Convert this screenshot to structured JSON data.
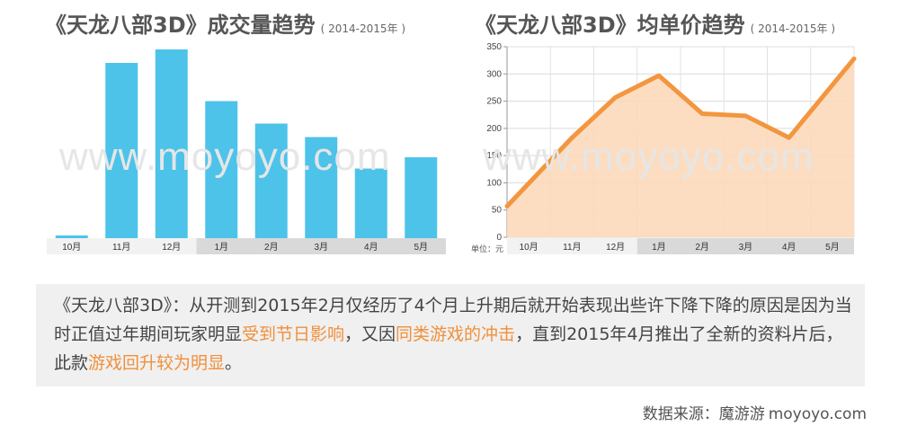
{
  "chart_titles": [
    {
      "main": "《天龙八部3D》成交量趋势",
      "sub": "( 2014-2015年 )"
    },
    {
      "main": "《天龙八部3D》均单价趋势",
      "sub": "( 2014-2015年 )"
    }
  ],
  "watermark": "www.moyoyo.com",
  "colors": {
    "bar": "#4dc3ea",
    "line": "#f39640",
    "area": "#fcd9ba",
    "axis_band_dark": "#d9d9d9",
    "axis_band_light": "#f2f2f2",
    "highlight": "#f0903a"
  },
  "chart_data": [
    {
      "type": "bar",
      "categories": [
        "10月",
        "11月",
        "12月",
        "1月",
        "2月",
        "3月",
        "4月",
        "5月"
      ],
      "values": [
        1,
        78,
        84,
        61,
        51,
        45,
        31,
        36
      ],
      "ylim": [
        0,
        90
      ],
      "grid": false
    },
    {
      "type": "area",
      "categories": [
        "10月",
        "11月",
        "12月",
        "1月",
        "2月",
        "3月",
        "4月",
        "5月"
      ],
      "values": [
        57,
        183,
        257,
        297,
        227,
        223,
        183,
        328
      ],
      "ylim": [
        0,
        350
      ],
      "yticks": [
        0,
        50,
        100,
        150,
        200,
        250,
        300,
        350
      ],
      "unit_label": "单位：元",
      "grid": true
    }
  ],
  "summary": {
    "part1": "《天龙八部3D》：从开测到2015年2月仅经历了4个月上升期后就开始表现出些许下降下降的原因是因为当时正值过年期间玩家明显",
    "hl1": "受到节日影响",
    "part2": "，又因",
    "hl2": "同类游戏的冲击",
    "part3": "，直到2015年4月推出了全新的资料片后，此款",
    "hl3": "游戏回升较为明显",
    "part4": "。"
  },
  "source": {
    "label": "数据来源：魔游游",
    "site": "moyoyo.com"
  }
}
